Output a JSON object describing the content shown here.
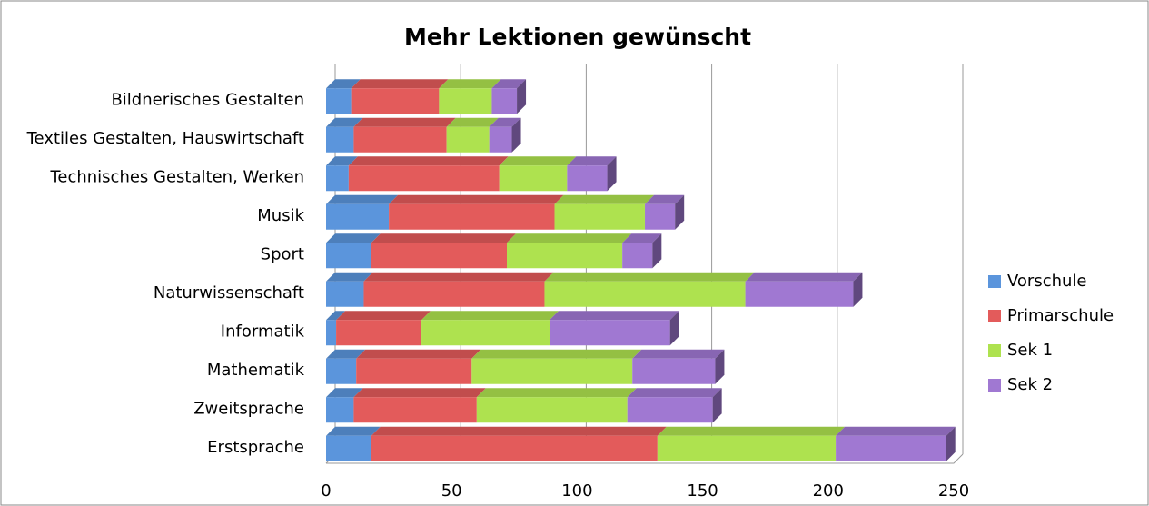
{
  "chart_data": {
    "type": "stacked_bar_horizontal",
    "title": "Mehr Lektionen gewünscht",
    "categories": [
      "Bildnerisches Gestalten",
      "Textiles Gestalten, Hauswirtschaft",
      "Technisches Gestalten, Werken",
      "Musik",
      "Sport",
      "Naturwissenschaft",
      "Informatik",
      "Mathematik",
      "Zweitsprache",
      "Erstsprache"
    ],
    "series": [
      {
        "name": "Vorschule",
        "color": "#5b95dc",
        "values": [
          10,
          11,
          9,
          25,
          18,
          15,
          4,
          12,
          11,
          18
        ]
      },
      {
        "name": "Primarschule",
        "color": "#e35b5b",
        "values": [
          35,
          37,
          60,
          66,
          54,
          72,
          34,
          46,
          49,
          114
        ]
      },
      {
        "name": "Sek 1",
        "color": "#aee24f",
        "values": [
          21,
          17,
          27,
          36,
          46,
          80,
          51,
          64,
          60,
          71
        ]
      },
      {
        "name": "Sek 2",
        "color": "#a078d2",
        "values": [
          10,
          9,
          16,
          12,
          12,
          43,
          48,
          33,
          34,
          44
        ]
      }
    ],
    "xlim": [
      0,
      250
    ],
    "xticks": [
      0,
      50,
      100,
      150,
      200,
      250
    ],
    "grid": true,
    "legend": "right"
  }
}
